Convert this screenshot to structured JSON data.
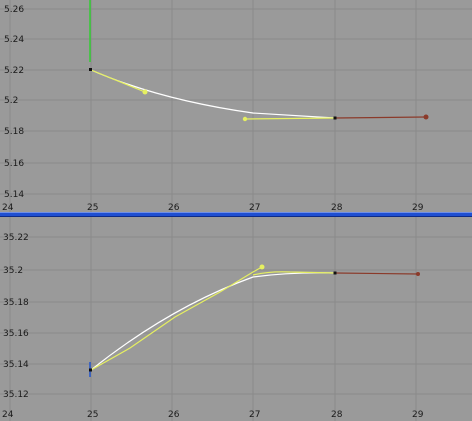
{
  "window": {
    "name": "curve-editor"
  },
  "panes": [
    {
      "id": "top",
      "x_ticks": [
        "24",
        "25",
        "26",
        "27",
        "28",
        "29"
      ],
      "y_ticks": [
        "5.26",
        "5.24",
        "5.22",
        "5.2",
        "5.18",
        "5.16",
        "5.14"
      ],
      "curves": [
        {
          "name": "curve-fit",
          "color": "#ffffff"
        },
        {
          "name": "keyframe-curve",
          "color": "#e6f060"
        },
        {
          "name": "extrapolation",
          "color": "#8b3a2a"
        },
        {
          "name": "selection-marker",
          "color": "#33cc33"
        }
      ]
    },
    {
      "id": "bottom",
      "x_ticks": [
        "24",
        "25",
        "26",
        "27",
        "28",
        "29"
      ],
      "y_ticks": [
        "35.22",
        "35.2",
        "35.18",
        "35.16",
        "35.14",
        "35.12"
      ],
      "curves": [
        {
          "name": "curve-fit",
          "color": "#ffffff"
        },
        {
          "name": "keyframe-curve",
          "color": "#e6f060"
        },
        {
          "name": "extrapolation",
          "color": "#8b3a2a"
        }
      ]
    }
  ],
  "colors": {
    "background": "#9a9a9a",
    "grid": "#8a8a8a",
    "divider": "#1f4fd1"
  }
}
